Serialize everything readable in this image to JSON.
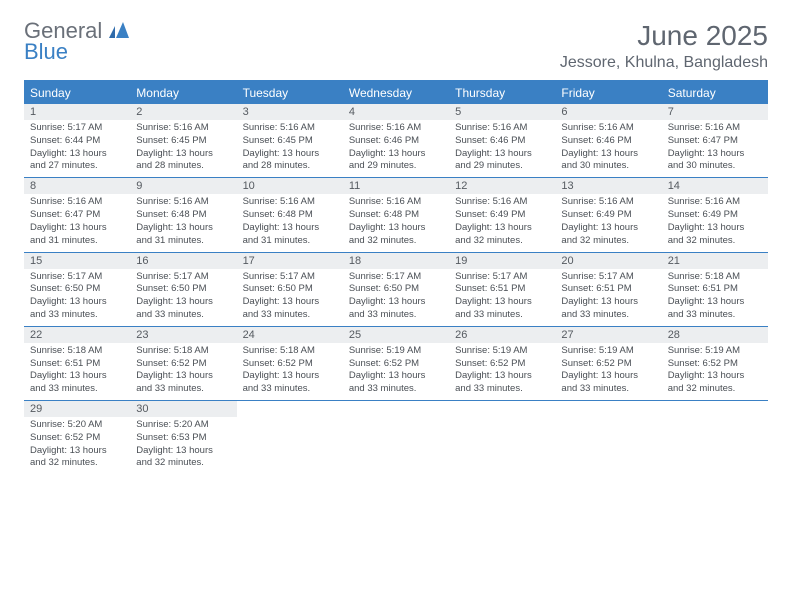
{
  "logo": {
    "general": "General",
    "blue": "Blue"
  },
  "title": "June 2025",
  "location": "Jessore, Khulna, Bangladesh",
  "colors": {
    "accent": "#3a80c4",
    "header_bg": "#3a80c4",
    "daynum_bg": "#eceef0",
    "text": "#4a4f55",
    "title": "#5f6670"
  },
  "weekdays": [
    "Sunday",
    "Monday",
    "Tuesday",
    "Wednesday",
    "Thursday",
    "Friday",
    "Saturday"
  ],
  "days": [
    {
      "n": "1",
      "sunrise": "Sunrise: 5:17 AM",
      "sunset": "Sunset: 6:44 PM",
      "daylight": "Daylight: 13 hours and 27 minutes."
    },
    {
      "n": "2",
      "sunrise": "Sunrise: 5:16 AM",
      "sunset": "Sunset: 6:45 PM",
      "daylight": "Daylight: 13 hours and 28 minutes."
    },
    {
      "n": "3",
      "sunrise": "Sunrise: 5:16 AM",
      "sunset": "Sunset: 6:45 PM",
      "daylight": "Daylight: 13 hours and 28 minutes."
    },
    {
      "n": "4",
      "sunrise": "Sunrise: 5:16 AM",
      "sunset": "Sunset: 6:46 PM",
      "daylight": "Daylight: 13 hours and 29 minutes."
    },
    {
      "n": "5",
      "sunrise": "Sunrise: 5:16 AM",
      "sunset": "Sunset: 6:46 PM",
      "daylight": "Daylight: 13 hours and 29 minutes."
    },
    {
      "n": "6",
      "sunrise": "Sunrise: 5:16 AM",
      "sunset": "Sunset: 6:46 PM",
      "daylight": "Daylight: 13 hours and 30 minutes."
    },
    {
      "n": "7",
      "sunrise": "Sunrise: 5:16 AM",
      "sunset": "Sunset: 6:47 PM",
      "daylight": "Daylight: 13 hours and 30 minutes."
    },
    {
      "n": "8",
      "sunrise": "Sunrise: 5:16 AM",
      "sunset": "Sunset: 6:47 PM",
      "daylight": "Daylight: 13 hours and 31 minutes."
    },
    {
      "n": "9",
      "sunrise": "Sunrise: 5:16 AM",
      "sunset": "Sunset: 6:48 PM",
      "daylight": "Daylight: 13 hours and 31 minutes."
    },
    {
      "n": "10",
      "sunrise": "Sunrise: 5:16 AM",
      "sunset": "Sunset: 6:48 PM",
      "daylight": "Daylight: 13 hours and 31 minutes."
    },
    {
      "n": "11",
      "sunrise": "Sunrise: 5:16 AM",
      "sunset": "Sunset: 6:48 PM",
      "daylight": "Daylight: 13 hours and 32 minutes."
    },
    {
      "n": "12",
      "sunrise": "Sunrise: 5:16 AM",
      "sunset": "Sunset: 6:49 PM",
      "daylight": "Daylight: 13 hours and 32 minutes."
    },
    {
      "n": "13",
      "sunrise": "Sunrise: 5:16 AM",
      "sunset": "Sunset: 6:49 PM",
      "daylight": "Daylight: 13 hours and 32 minutes."
    },
    {
      "n": "14",
      "sunrise": "Sunrise: 5:16 AM",
      "sunset": "Sunset: 6:49 PM",
      "daylight": "Daylight: 13 hours and 32 minutes."
    },
    {
      "n": "15",
      "sunrise": "Sunrise: 5:17 AM",
      "sunset": "Sunset: 6:50 PM",
      "daylight": "Daylight: 13 hours and 33 minutes."
    },
    {
      "n": "16",
      "sunrise": "Sunrise: 5:17 AM",
      "sunset": "Sunset: 6:50 PM",
      "daylight": "Daylight: 13 hours and 33 minutes."
    },
    {
      "n": "17",
      "sunrise": "Sunrise: 5:17 AM",
      "sunset": "Sunset: 6:50 PM",
      "daylight": "Daylight: 13 hours and 33 minutes."
    },
    {
      "n": "18",
      "sunrise": "Sunrise: 5:17 AM",
      "sunset": "Sunset: 6:50 PM",
      "daylight": "Daylight: 13 hours and 33 minutes."
    },
    {
      "n": "19",
      "sunrise": "Sunrise: 5:17 AM",
      "sunset": "Sunset: 6:51 PM",
      "daylight": "Daylight: 13 hours and 33 minutes."
    },
    {
      "n": "20",
      "sunrise": "Sunrise: 5:17 AM",
      "sunset": "Sunset: 6:51 PM",
      "daylight": "Daylight: 13 hours and 33 minutes."
    },
    {
      "n": "21",
      "sunrise": "Sunrise: 5:18 AM",
      "sunset": "Sunset: 6:51 PM",
      "daylight": "Daylight: 13 hours and 33 minutes."
    },
    {
      "n": "22",
      "sunrise": "Sunrise: 5:18 AM",
      "sunset": "Sunset: 6:51 PM",
      "daylight": "Daylight: 13 hours and 33 minutes."
    },
    {
      "n": "23",
      "sunrise": "Sunrise: 5:18 AM",
      "sunset": "Sunset: 6:52 PM",
      "daylight": "Daylight: 13 hours and 33 minutes."
    },
    {
      "n": "24",
      "sunrise": "Sunrise: 5:18 AM",
      "sunset": "Sunset: 6:52 PM",
      "daylight": "Daylight: 13 hours and 33 minutes."
    },
    {
      "n": "25",
      "sunrise": "Sunrise: 5:19 AM",
      "sunset": "Sunset: 6:52 PM",
      "daylight": "Daylight: 13 hours and 33 minutes."
    },
    {
      "n": "26",
      "sunrise": "Sunrise: 5:19 AM",
      "sunset": "Sunset: 6:52 PM",
      "daylight": "Daylight: 13 hours and 33 minutes."
    },
    {
      "n": "27",
      "sunrise": "Sunrise: 5:19 AM",
      "sunset": "Sunset: 6:52 PM",
      "daylight": "Daylight: 13 hours and 33 minutes."
    },
    {
      "n": "28",
      "sunrise": "Sunrise: 5:19 AM",
      "sunset": "Sunset: 6:52 PM",
      "daylight": "Daylight: 13 hours and 32 minutes."
    },
    {
      "n": "29",
      "sunrise": "Sunrise: 5:20 AM",
      "sunset": "Sunset: 6:52 PM",
      "daylight": "Daylight: 13 hours and 32 minutes."
    },
    {
      "n": "30",
      "sunrise": "Sunrise: 5:20 AM",
      "sunset": "Sunset: 6:53 PM",
      "daylight": "Daylight: 13 hours and 32 minutes."
    }
  ],
  "first_weekday_offset": 0,
  "weeks_count": 5
}
